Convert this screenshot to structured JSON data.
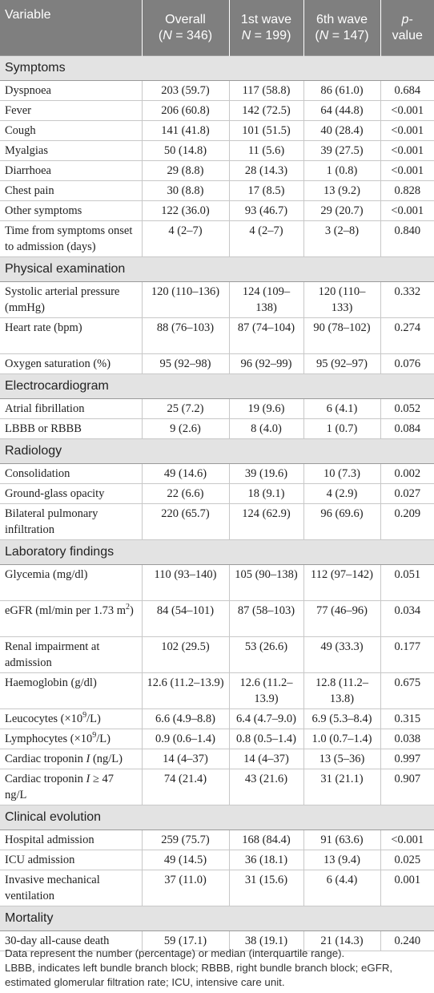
{
  "columns": {
    "variable": "Variable",
    "overall": {
      "name": "Overall",
      "n": "(N = 346)"
    },
    "wave1": {
      "name": "1st wave",
      "n": "N = 199)"
    },
    "wave6": {
      "name": "6th wave",
      "n": "(N = 147)"
    },
    "pvalue": {
      "name": "p-",
      "sub": "value"
    }
  },
  "sections": [
    {
      "title": "Symptoms",
      "rows": [
        {
          "label": "Dyspnoea",
          "overall": "203 (59.7)",
          "wave1": "117 (58.8)",
          "wave6": "86 (61.0)",
          "p": "0.684"
        },
        {
          "label": "Fever",
          "overall": "206 (60.8)",
          "wave1": "142 (72.5)",
          "wave6": "64 (44.8)",
          "p": "<0.001"
        },
        {
          "label": "Cough",
          "overall": "141 (41.8)",
          "wave1": "101 (51.5)",
          "wave6": "40 (28.4)",
          "p": "<0.001"
        },
        {
          "label": "Myalgias",
          "overall": "50 (14.8)",
          "wave1": "11 (5.6)",
          "wave6": "39 (27.5)",
          "p": "<0.001"
        },
        {
          "label": "Diarrhoea",
          "overall": "29 (8.8)",
          "wave1": "28 (14.3)",
          "wave6": "1 (0.8)",
          "p": "<0.001"
        },
        {
          "label": "Chest pain",
          "overall": "30 (8.8)",
          "wave1": "17 (8.5)",
          "wave6": "13 (9.2)",
          "p": "0.828"
        },
        {
          "label": "Other symptoms",
          "overall": "122 (36.0)",
          "wave1": "93 (46.7)",
          "wave6": "29 (20.7)",
          "p": "<0.001"
        },
        {
          "label": "Time from symptoms onset to admission (days)",
          "overall": "4 (2–7)",
          "wave1": "4 (2–7)",
          "wave6": "3 (2–8)",
          "p": "0.840"
        }
      ]
    },
    {
      "title": "Physical examination",
      "rows": [
        {
          "label": "Systolic arterial pressure (mmHg)",
          "overall": "120 (110–136)",
          "wave1": "124 (109–138)",
          "wave6": "120 (110–133)",
          "p": "0.332"
        },
        {
          "label": "Heart rate (bpm)",
          "overall": "88 (76–103)",
          "wave1": "87 (74–104)",
          "wave6": "90 (78–102)",
          "p": "0.274"
        },
        {
          "label": "Oxygen saturation (%)",
          "overall": "95 (92–98)",
          "wave1": "96 (92–99)",
          "wave6": "95 (92–97)",
          "p": "0.076"
        }
      ]
    },
    {
      "title": "Electrocardiogram",
      "rows": [
        {
          "label": "Atrial fibrillation",
          "overall": "25 (7.2)",
          "wave1": "19 (9.6)",
          "wave6": "6 (4.1)",
          "p": "0.052"
        },
        {
          "label": "LBBB or RBBB",
          "overall": "9 (2.6)",
          "wave1": "8 (4.0)",
          "wave6": "1 (0.7)",
          "p": "0.084"
        }
      ]
    },
    {
      "title": "Radiology",
      "rows": [
        {
          "label": "Consolidation",
          "overall": "49 (14.6)",
          "wave1": "39 (19.6)",
          "wave6": "10 (7.3)",
          "p": "0.002"
        },
        {
          "label": "Ground-glass opacity",
          "overall": "22 (6.6)",
          "wave1": "18 (9.1)",
          "wave6": "4 (2.9)",
          "p": "0.027"
        },
        {
          "label": "Bilateral pulmonary infiltration",
          "overall": "220 (65.7)",
          "wave1": "124 (62.9)",
          "wave6": "96 (69.6)",
          "p": "0.209"
        }
      ]
    },
    {
      "title": "Laboratory findings",
      "rows": [
        {
          "label": "Glycemia (mg/dl)",
          "overall": "110 (93–140)",
          "wave1": "105 (90–138)",
          "wave6": "112 (97–142)",
          "p": "0.051"
        },
        {
          "label": "eGFR (ml/min per 1.73 m2)",
          "overall": "84 (54–101)",
          "wave1": "87 (58–103)",
          "wave6": "77 (46–96)",
          "p": "0.034"
        },
        {
          "label": "Renal impairment at admission",
          "overall": "102 (29.5)",
          "wave1": "53 (26.6)",
          "wave6": "49 (33.3)",
          "p": "0.177"
        },
        {
          "label": "Haemoglobin (g/dl)",
          "overall": "12.6 (11.2–13.9)",
          "wave1": "12.6 (11.2–13.9)",
          "wave6": "12.8 (11.2–13.8)",
          "p": "0.675"
        },
        {
          "label": "Leucocytes (×109/L)",
          "overall": "6.6 (4.9–8.8)",
          "wave1": "6.4 (4.7–9.0)",
          "wave6": "6.9 (5.3–8.4)",
          "p": "0.315"
        },
        {
          "label": "Lymphocytes (×109/L)",
          "overall": "0.9 (0.6–1.4)",
          "wave1": "0.8 (0.5–1.4)",
          "wave6": "1.0 (0.7–1.4)",
          "p": "0.038"
        },
        {
          "label": "Cardiac troponin I (ng/L)",
          "overall": "14 (4–37)",
          "wave1": "14 (4–37)",
          "wave6": "13 (5–36)",
          "p": "0.997"
        },
        {
          "label": "Cardiac troponin I ≥ 47 ng/L",
          "overall": "74 (21.4)",
          "wave1": "43 (21.6)",
          "wave6": "31 (21.1)",
          "p": "0.907"
        }
      ]
    },
    {
      "title": "Clinical evolution",
      "rows": [
        {
          "label": "Hospital admission",
          "overall": "259 (75.7)",
          "wave1": "168 (84.4)",
          "wave6": "91 (63.6)",
          "p": "<0.001"
        },
        {
          "label": "ICU admission",
          "overall": "49 (14.5)",
          "wave1": "36 (18.1)",
          "wave6": "13 (9.4)",
          "p": "0.025"
        },
        {
          "label": "Invasive mechanical ventilation",
          "overall": "37 (11.0)",
          "wave1": "31 (15.6)",
          "wave6": "6 (4.4)",
          "p": "0.001"
        }
      ]
    },
    {
      "title": "Mortality",
      "rows": [
        {
          "label": "30-day all-cause death",
          "overall": "59 (17.1)",
          "wave1": "38 (19.1)",
          "wave6": "21 (14.3)",
          "p": "0.240"
        }
      ]
    }
  ],
  "footnotes": [
    "Data represent the number (percentage) or median (interquartile range).",
    "LBBB, indicates left bundle branch block; RBBB, right bundle branch block; eGFR, estimated glomerular filtration rate; ICU, intensive care unit."
  ]
}
